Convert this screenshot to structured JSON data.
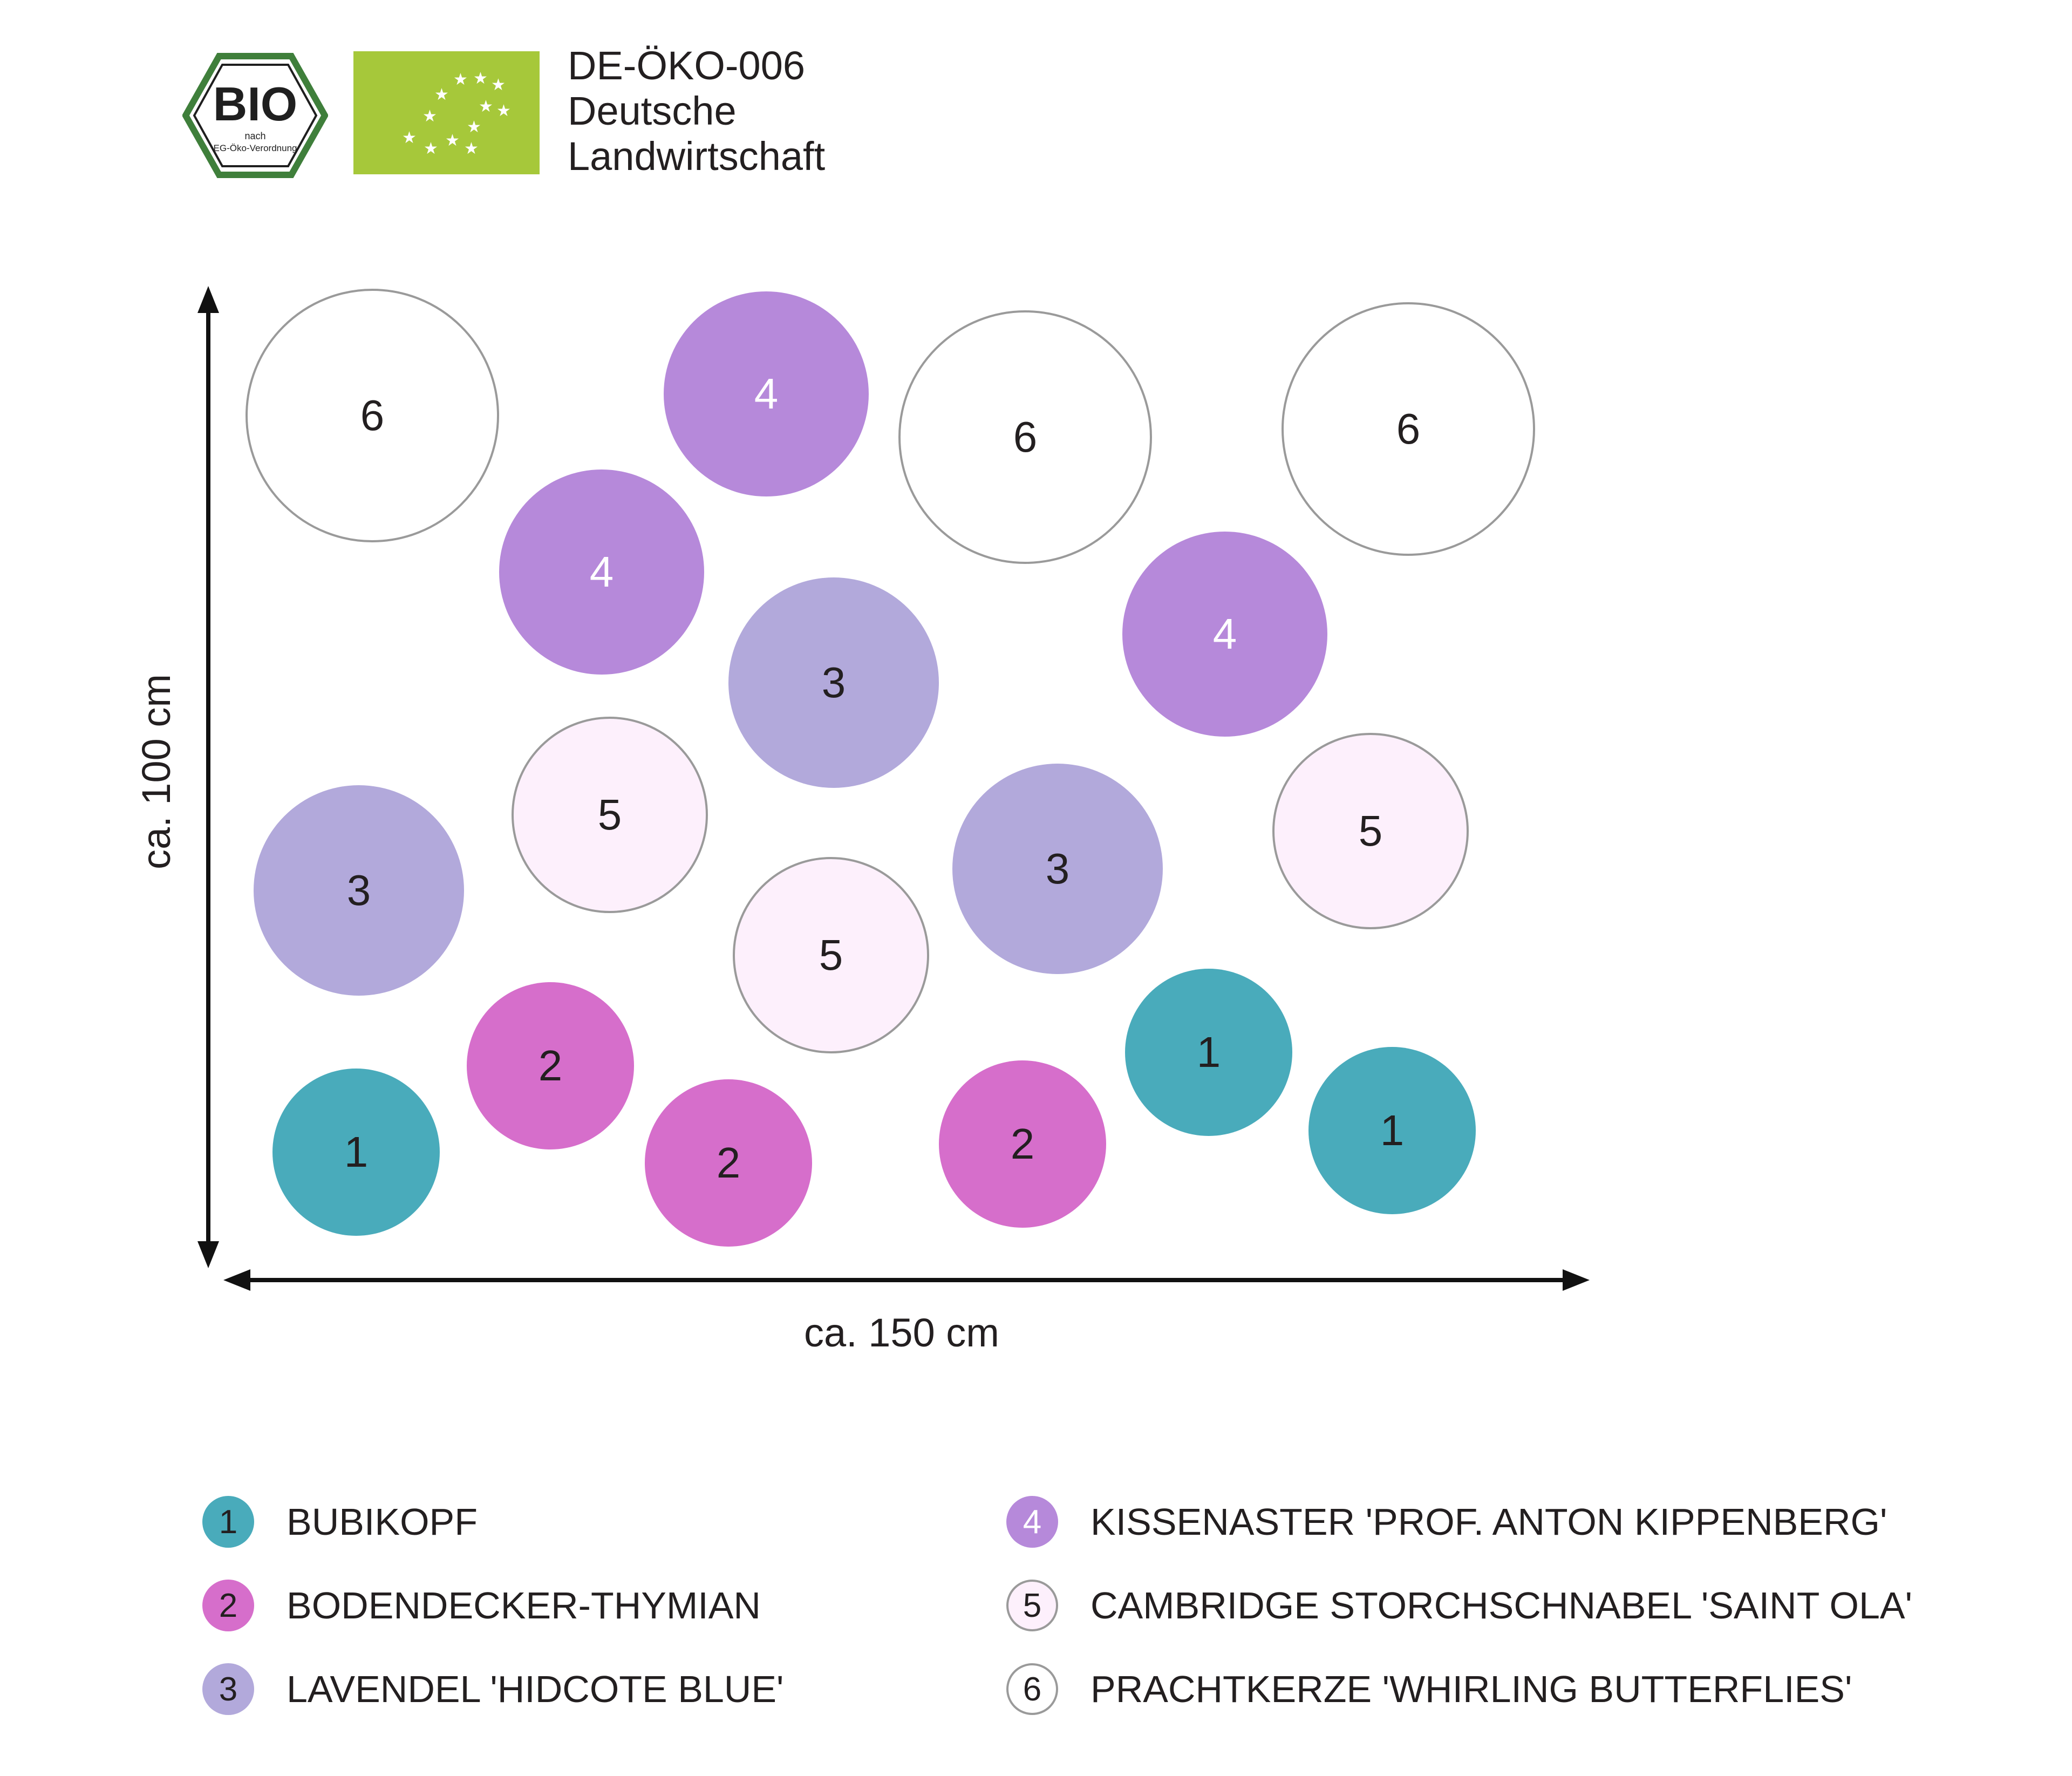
{
  "header": {
    "seal": {
      "top": "BIO",
      "line1": "nach",
      "line2": "EG-Öko-Verordnung"
    },
    "certification": [
      "DE-ÖKO-006",
      "Deutsche",
      "Landwirtschaft"
    ]
  },
  "dimensions": {
    "width_label": "ca. 150 cm",
    "height_label": "ca. 100 cm"
  },
  "colors": {
    "1": "#49abbb",
    "2": "#d66ecb",
    "3": "#b2a9db",
    "4": "#b689da",
    "5": "#fdf0fc",
    "6": "#ffffff",
    "label_light": "#ffffff",
    "label_dark": "#231f20",
    "eu_green": "#a6c83a"
  },
  "plants": [
    {
      "num": "6"
    },
    {
      "num": "4"
    },
    {
      "num": "6"
    },
    {
      "num": "6"
    },
    {
      "num": "4"
    },
    {
      "num": "3"
    },
    {
      "num": "4"
    },
    {
      "num": "5"
    },
    {
      "num": "3"
    },
    {
      "num": "3"
    },
    {
      "num": "5"
    },
    {
      "num": "5"
    },
    {
      "num": "2"
    },
    {
      "num": "1"
    },
    {
      "num": "2"
    },
    {
      "num": "1"
    },
    {
      "num": "2"
    },
    {
      "num": "1"
    }
  ],
  "legend": [
    {
      "num": "1",
      "label": "BUBIKOPF"
    },
    {
      "num": "2",
      "label": "BODENDECKER-THYMIAN"
    },
    {
      "num": "3",
      "label": "LAVENDEL 'HIDCOTE BLUE'"
    },
    {
      "num": "4",
      "label": "KISSENASTER 'PROF. ANTON KIPPENBERG'"
    },
    {
      "num": "5",
      "label": "CAMBRIDGE STORCHSCHNABEL 'SAINT OLA'"
    },
    {
      "num": "6",
      "label": "PRACHTKERZE 'WHIRLING BUTTERFLIES'"
    }
  ]
}
